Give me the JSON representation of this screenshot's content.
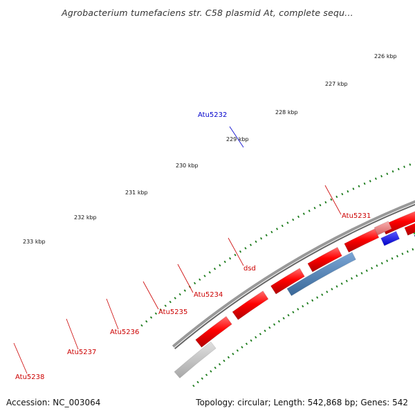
{
  "title": "Agrobacterium tumefaciens str. C58 plasmid At, complete sequ...",
  "footer": {
    "accession": "Accession: NC_003064",
    "stats": "Topology: circular; Length: 542,868 bp; Genes: 542"
  },
  "colors": {
    "backbone": "#888888",
    "forward_gene": "#ff0000",
    "reverse_gene_blue": "#4a78b0",
    "highlight_gene": "#f08080",
    "blue_feature": "#0000ff",
    "green_track": "#33bb33",
    "navy_track": "#000080",
    "tick": "#1a7a1a",
    "label_red": "#cc0000",
    "label_blue": "#0000cc"
  },
  "tick_labels": [
    "226 kbp",
    "227 kbp",
    "228 kbp",
    "229 kbp",
    "230 kbp",
    "231 kbp",
    "232 kbp",
    "233 kbp"
  ],
  "gene_labels": [
    {
      "id": "atu5232",
      "text": "Atu5232",
      "color": "#0000cc"
    },
    {
      "id": "atu5231",
      "text": "Atu5231",
      "color": "#cc0000"
    },
    {
      "id": "dsd",
      "text": "dsd",
      "color": "#cc0000"
    },
    {
      "id": "atu5234",
      "text": "Atu5234",
      "color": "#cc0000"
    },
    {
      "id": "atu5235",
      "text": "Atu5235",
      "color": "#cc0000"
    },
    {
      "id": "atu5236",
      "text": "Atu5236",
      "color": "#cc0000"
    },
    {
      "id": "atu5237",
      "text": "Atu5237",
      "color": "#cc0000"
    },
    {
      "id": "atu5238",
      "text": "Atu5238",
      "color": "#cc0000"
    }
  ]
}
